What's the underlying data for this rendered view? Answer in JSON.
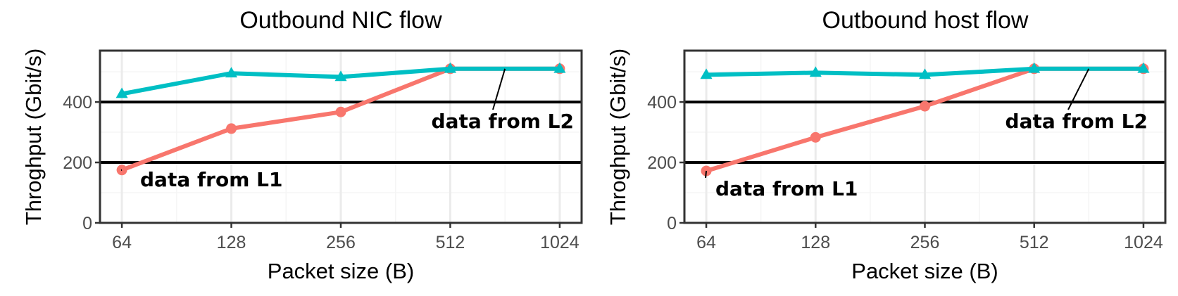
{
  "colors": {
    "l1": "#F8766D",
    "l2": "#00BFC4",
    "hline": "#000000",
    "grid_major": "#EBEBEB",
    "grid_minor": "#F5F5F5",
    "panel_border": "#333333",
    "tick_text": "#4D4D4D"
  },
  "chart_data": [
    {
      "type": "line",
      "title": "Outbound NIC flow",
      "xlabel": "Packet size (B)",
      "ylabel": "Throghput (Gbit/s)",
      "x_scale": "log2",
      "categories": [
        "64",
        "128",
        "256",
        "512",
        "1024"
      ],
      "x": [
        64,
        128,
        256,
        512,
        1024
      ],
      "ylim": [
        0,
        570
      ],
      "yticks": [
        0,
        200,
        400
      ],
      "hlines": [
        200,
        400
      ],
      "grid": true,
      "series": [
        {
          "key": "l1",
          "marker": "circle",
          "values": [
            175,
            312,
            367,
            510,
            510
          ]
        },
        {
          "key": "l2",
          "marker": "triangle",
          "values": [
            427,
            495,
            483,
            510,
            510
          ]
        }
      ],
      "annotations": [
        {
          "series": "l1",
          "text": "data from L1",
          "point_x": 64,
          "point_y": 175
        },
        {
          "series": "l2",
          "text": "data from L2",
          "point_x": 724,
          "point_y": 510
        }
      ]
    },
    {
      "type": "line",
      "title": "Outbound host flow",
      "xlabel": "Packet size (B)",
      "ylabel": "Throghput (Gbit/s)",
      "x_scale": "log2",
      "categories": [
        "64",
        "128",
        "256",
        "512",
        "1024"
      ],
      "x": [
        64,
        128,
        256,
        512,
        1024
      ],
      "ylim": [
        0,
        570
      ],
      "yticks": [
        0,
        200,
        400
      ],
      "hlines": [
        200,
        400
      ],
      "grid": true,
      "series": [
        {
          "key": "l1",
          "marker": "circle",
          "values": [
            172,
            283,
            386,
            510,
            510
          ]
        },
        {
          "key": "l2",
          "marker": "triangle",
          "values": [
            490,
            497,
            490,
            510,
            510
          ]
        }
      ],
      "annotations": [
        {
          "series": "l1",
          "text": "data from L1",
          "point_x": 64,
          "point_y": 172
        },
        {
          "series": "l2",
          "text": "data from L2",
          "point_x": 724,
          "point_y": 510
        }
      ]
    }
  ]
}
